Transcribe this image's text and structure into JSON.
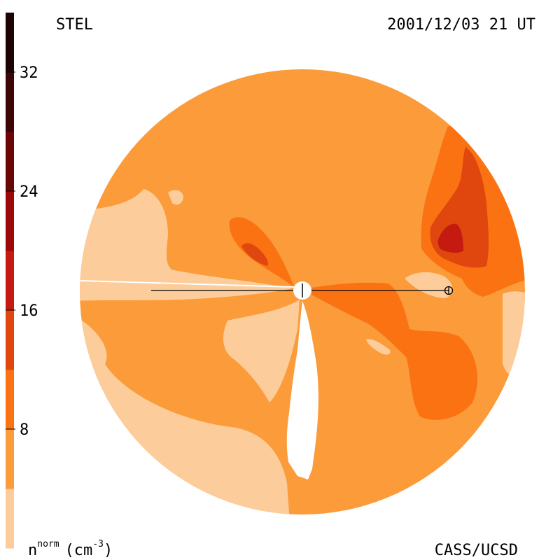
{
  "header": {
    "source_label": "STEL",
    "timestamp": "2001/12/03 21 UT"
  },
  "footer": {
    "credit": "CASS/UCSD",
    "quantity": "n",
    "quantity_superscript": "norm",
    "unit": "(cm",
    "unit_superscript": "-3",
    "unit_close": ")"
  },
  "chart_data": {
    "type": "heatmap",
    "title": "",
    "colorbar": {
      "min": 0,
      "max": 36,
      "ticks": [
        {
          "value": 8,
          "label": "8"
        },
        {
          "value": 16,
          "label": "16"
        },
        {
          "value": 24,
          "label": "24"
        },
        {
          "value": 32,
          "label": "32"
        }
      ],
      "levels": [
        {
          "from": 0,
          "to": 4,
          "color": "#fdcc9b"
        },
        {
          "from": 4,
          "to": 8,
          "color": "#fb9b3a"
        },
        {
          "from": 8,
          "to": 12,
          "color": "#fb7212"
        },
        {
          "from": 12,
          "to": 16,
          "color": "#e0470e"
        },
        {
          "from": 16,
          "to": 20,
          "color": "#c41a10"
        },
        {
          "from": 20,
          "to": 24,
          "color": "#9c0707"
        },
        {
          "from": 24,
          "to": 28,
          "color": "#6b0606"
        },
        {
          "from": 28,
          "to": 32,
          "color": "#3d0606"
        },
        {
          "from": 32,
          "to": 36,
          "color": "#1c0404"
        }
      ]
    },
    "colors": {
      "level1": "#fdcc9b",
      "level2": "#fb9b3a",
      "level3": "#fb7212",
      "level4": "#e0470e",
      "level5": "#c41a10",
      "sun": "#ffffff",
      "earth_marker": "#000000"
    }
  }
}
